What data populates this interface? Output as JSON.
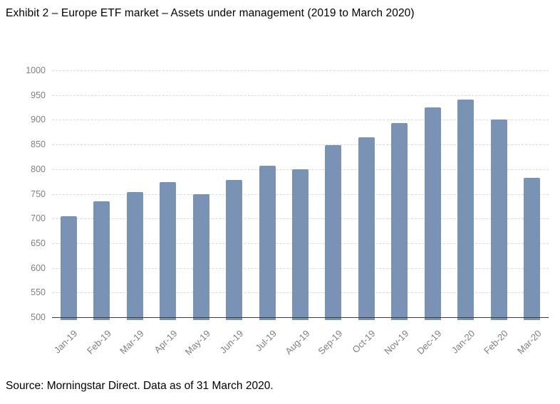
{
  "page": {
    "title": "Exhibit 2 – Europe ETF market – Assets under management (2019 to March 2020)",
    "source": "Source: Morningstar Direct. Data as of 31 March 2020."
  },
  "colors": {
    "bar": "#7a93b5",
    "gridline": "#d9d9d9",
    "axis_line": "#3a3a3a",
    "tick_label": "#7f7f7f",
    "text": "#000000",
    "background": "#ffffff"
  },
  "chart_data": {
    "type": "bar",
    "title": "Exhibit 2 – Europe ETF market – Assets under management (2019 to March 2020)",
    "source": "Source: Morningstar Direct. Data as of 31 March 2020.",
    "categories": [
      "Jan-19",
      "Feb-19",
      "Mar-19",
      "Apr-19",
      "May-19",
      "Jun-19",
      "Jul-19",
      "Aug-19",
      "Sep-19",
      "Oct-19",
      "Nov-19",
      "Dec-19",
      "Jan-20",
      "Feb-20",
      "Mar-20"
    ],
    "values": [
      705,
      735,
      753,
      774,
      749,
      778,
      807,
      799,
      848,
      864,
      894,
      925,
      941,
      900,
      783
    ],
    "xlabel": "",
    "ylabel": "",
    "ylim": [
      500,
      1000
    ],
    "yticks": [
      500,
      550,
      600,
      650,
      700,
      750,
      800,
      850,
      900,
      950,
      1000
    ],
    "grid": "horizontal-dashed",
    "legend": "none",
    "bar_color": "#7a93b5",
    "x_tick_rotation_deg": 45
  }
}
